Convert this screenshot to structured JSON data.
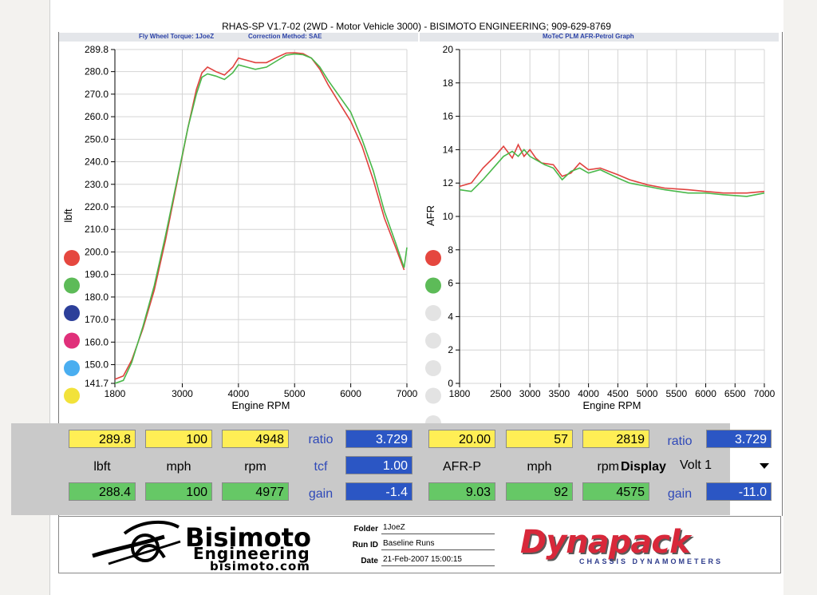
{
  "header": {
    "title": "RHAS-SP V1.7-02   (2WD - Motor Vehicle 3000) - BISIMOTO ENGINEERING; 909-629-8769",
    "left_sub_torque": "Fly Wheel Torque: 1JoeZ",
    "left_sub_correction": "Correction Method: SAE",
    "right_sub": "MoTeC PLM AFR-Petrol Graph"
  },
  "chart_data": [
    {
      "type": "line",
      "xlabel": "Engine RPM",
      "ylabel": "lbft",
      "xlim": [
        1800,
        7000
      ],
      "ylim": [
        141.7,
        289.8
      ],
      "x_ticks": [
        1800,
        3000,
        4000,
        5000,
        6000,
        7000
      ],
      "y_ticks": [
        "289.8",
        "280.0",
        "270.0",
        "260.0",
        "250.0",
        "240.0",
        "230.0",
        "220.0",
        "210.0",
        "200.0",
        "190.0",
        "180.0",
        "170.0",
        "160.0",
        "150.0",
        "141.7"
      ],
      "y_tick_values": [
        289.8,
        280,
        270,
        260,
        250,
        240,
        230,
        220,
        210,
        200,
        190,
        180,
        170,
        160,
        150,
        141.7
      ],
      "grid": true,
      "series": [
        {
          "color": "#e0413e",
          "points": [
            [
              1800,
              143.5
            ],
            [
              1950,
              145
            ],
            [
              2100,
              152
            ],
            [
              2300,
              166
            ],
            [
              2500,
              183
            ],
            [
              2700,
              205
            ],
            [
              2900,
              230
            ],
            [
              3100,
              255
            ],
            [
              3250,
              272
            ],
            [
              3350,
              279.5
            ],
            [
              3450,
              282
            ],
            [
              3600,
              280
            ],
            [
              3750,
              278.5
            ],
            [
              3900,
              282
            ],
            [
              4000,
              286
            ],
            [
              4150,
              285
            ],
            [
              4300,
              284
            ],
            [
              4500,
              284
            ],
            [
              4700,
              286.5
            ],
            [
              4850,
              288.2
            ],
            [
              5000,
              288.4
            ],
            [
              5150,
              288
            ],
            [
              5300,
              286
            ],
            [
              5450,
              281
            ],
            [
              5600,
              274
            ],
            [
              5800,
              266
            ],
            [
              6000,
              258
            ],
            [
              6200,
              247
            ],
            [
              6400,
              232
            ],
            [
              6600,
              215
            ],
            [
              6800,
              202
            ],
            [
              6950,
              192
            ]
          ]
        },
        {
          "color": "#49b84a",
          "points": [
            [
              1800,
              141.7
            ],
            [
              1950,
              143
            ],
            [
              2100,
              151
            ],
            [
              2300,
              167
            ],
            [
              2500,
              185
            ],
            [
              2700,
              207
            ],
            [
              2900,
              231
            ],
            [
              3100,
              255
            ],
            [
              3250,
              270
            ],
            [
              3350,
              277.5
            ],
            [
              3450,
              279
            ],
            [
              3600,
              278
            ],
            [
              3750,
              276.5
            ],
            [
              3900,
              279.5
            ],
            [
              4000,
              283
            ],
            [
              4150,
              282
            ],
            [
              4300,
              281
            ],
            [
              4500,
              282
            ],
            [
              4700,
              285
            ],
            [
              4850,
              287.3
            ],
            [
              5000,
              287.8
            ],
            [
              5150,
              287.5
            ],
            [
              5300,
              286
            ],
            [
              5450,
              282
            ],
            [
              5600,
              276
            ],
            [
              5800,
              269
            ],
            [
              6000,
              262
            ],
            [
              6200,
              250
            ],
            [
              6400,
              236
            ],
            [
              6600,
              218
            ],
            [
              6800,
              204
            ],
            [
              6950,
              193
            ],
            [
              7000,
              202
            ]
          ]
        }
      ]
    },
    {
      "type": "line",
      "xlabel": "Engine RPM",
      "ylabel": "AFR",
      "xlim": [
        1800,
        7000
      ],
      "ylim": [
        0,
        20
      ],
      "x_ticks": [
        1800,
        2500,
        3000,
        3500,
        4000,
        4500,
        5000,
        5500,
        6000,
        6500,
        7000
      ],
      "y_ticks": [
        0,
        2,
        4,
        6,
        8,
        10,
        12,
        14,
        16,
        18,
        20
      ],
      "grid": true,
      "series": [
        {
          "color": "#e0413e",
          "points": [
            [
              1800,
              11.8
            ],
            [
              2000,
              12
            ],
            [
              2200,
              12.9
            ],
            [
              2400,
              13.6
            ],
            [
              2550,
              14.2
            ],
            [
              2700,
              13.5
            ],
            [
              2800,
              14.3
            ],
            [
              2900,
              13.6
            ],
            [
              3000,
              14
            ],
            [
              3100,
              13.5
            ],
            [
              3200,
              13.2
            ],
            [
              3400,
              13.1
            ],
            [
              3550,
              12.4
            ],
            [
              3700,
              12.6
            ],
            [
              3850,
              13.2
            ],
            [
              4000,
              12.8
            ],
            [
              4200,
              12.9
            ],
            [
              4500,
              12.5
            ],
            [
              4700,
              12.2
            ],
            [
              5000,
              11.9
            ],
            [
              5300,
              11.7
            ],
            [
              5700,
              11.6
            ],
            [
              6000,
              11.5
            ],
            [
              6300,
              11.4
            ],
            [
              6700,
              11.4
            ],
            [
              7000,
              11.5
            ]
          ]
        },
        {
          "color": "#49b84a",
          "points": [
            [
              1800,
              11.6
            ],
            [
              2000,
              11.5
            ],
            [
              2200,
              12.2
            ],
            [
              2400,
              13
            ],
            [
              2550,
              13.6
            ],
            [
              2700,
              13.9
            ],
            [
              2800,
              13.6
            ],
            [
              2900,
              14
            ],
            [
              3000,
              13.6
            ],
            [
              3100,
              13.4
            ],
            [
              3250,
              13.1
            ],
            [
              3400,
              12.9
            ],
            [
              3550,
              12.2
            ],
            [
              3700,
              12.7
            ],
            [
              3850,
              12.9
            ],
            [
              4000,
              12.6
            ],
            [
              4200,
              12.8
            ],
            [
              4500,
              12.3
            ],
            [
              4700,
              12
            ],
            [
              5000,
              11.8
            ],
            [
              5300,
              11.6
            ],
            [
              5700,
              11.4
            ],
            [
              6000,
              11.4
            ],
            [
              6300,
              11.3
            ],
            [
              6700,
              11.2
            ],
            [
              7000,
              11.4
            ]
          ]
        }
      ]
    }
  ],
  "legend_dots_left": [
    "#e5473f",
    "#5dbb58",
    "#2c3f9a",
    "#e0307a",
    "#4aaef0",
    "#f2e23a"
  ],
  "legend_dots_right": [
    "#e5473f",
    "#5dbb58",
    "#e3e3e3",
    "#e3e3e3",
    "#e3e3e3",
    "#e3e3e3",
    "#e3e3e3"
  ],
  "stats": {
    "left": {
      "torque_max": "289.8",
      "mph_max": "100",
      "rpm_max": "4948",
      "lbl_lbft": "lbft",
      "lbl_mph": "mph",
      "lbl_rpm": "rpm",
      "torque_2": "288.4",
      "mph_2": "100",
      "rpm_2": "4977",
      "lbl_ratio": "ratio",
      "ratio": "3.729",
      "lbl_tcf": "tcf",
      "tcf": "1.00",
      "lbl_gain": "gain",
      "gain": "-1.4"
    },
    "right": {
      "afr_max": "20.00",
      "mph_max": "57",
      "rpm_max": "2819",
      "lbl_afr": "AFR-P",
      "lbl_mph": "mph",
      "lbl_rpm": "rpm",
      "afr_2": "9.03",
      "mph_2": "92",
      "rpm_2": "4575",
      "lbl_ratio": "ratio",
      "ratio": "3.729",
      "display_label": "Display",
      "display_value": "Volt 1",
      "lbl_gain": "gain",
      "gain": "-11.0"
    }
  },
  "footer": {
    "brand_line1": "Bisimoto",
    "brand_line2": "Engineering",
    "brand_line3": "bisimoto.com",
    "folder_label": "Folder",
    "folder_value": "1JoeZ",
    "runid_label": "Run ID",
    "runid_value": "Baseline Runs",
    "date_label": "Date",
    "date_value": "21-Feb-2007  15:00:15",
    "dyna_logo": "Dynapack",
    "dyna_sub": "CHASSIS       DYNAMOMETERS"
  }
}
